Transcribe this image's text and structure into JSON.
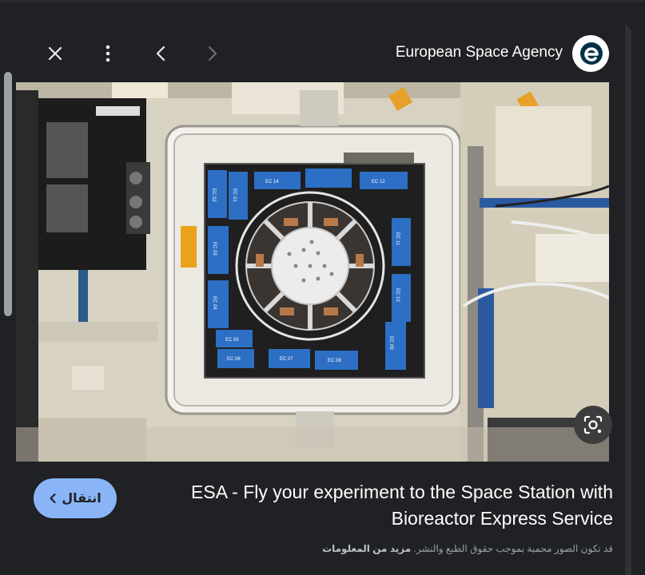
{
  "toolbar": {
    "close_icon": "close-icon",
    "more_icon": "more-vert-icon",
    "prev_icon": "chevron-left-icon",
    "next_icon": "chevron-right-icon",
    "source_name": "European Space Agency",
    "source_logo_icon": "esa-logo-icon"
  },
  "image": {
    "labels": [
      "EC 01",
      "EC 02",
      "EC 03",
      "EC 04",
      "EC 05",
      "EC 06",
      "EC 07",
      "EC 08",
      "EC 09",
      "EC 10",
      "EC 11",
      "EC 12",
      "EC 14"
    ],
    "lens_icon": "visual-search-icon"
  },
  "result": {
    "visit_label": "انتقال",
    "visit_icon": "chevron-left-icon",
    "title_line1": "ESA - Fly your experiment to the Space Station with",
    "title_line2": "Bioreactor Express Service",
    "notice_text": "قد تكون الصور محمية بموجب حقوق الطبع والنشر.",
    "more_info": "مزيد من المعلومات"
  },
  "colors": {
    "accent": "#8ab4f8",
    "background": "#202124"
  }
}
